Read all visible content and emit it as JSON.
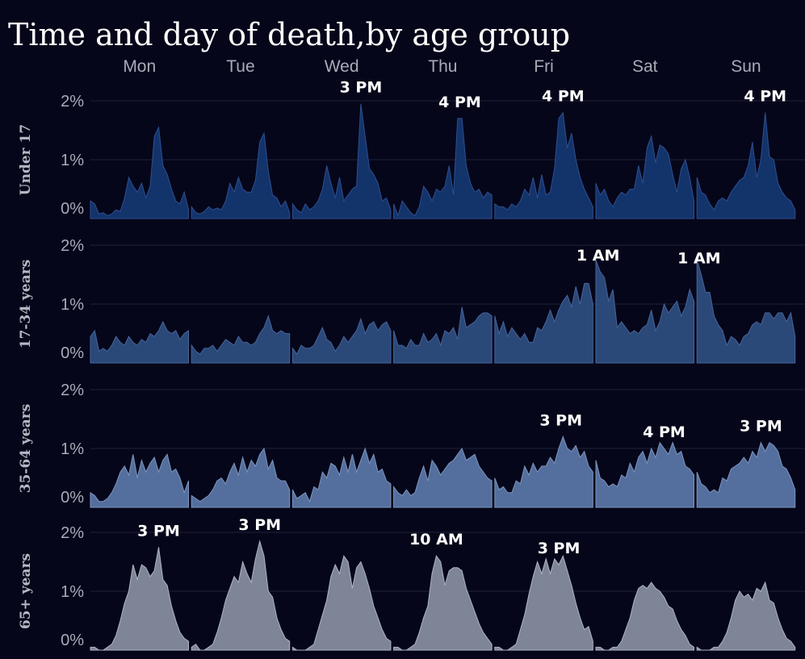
{
  "chart_data": {
    "type": "area",
    "title": "Time and day of death,by age group",
    "days": [
      "Mon",
      "Tue",
      "Wed",
      "Thu",
      "Fri",
      "Sat",
      "Sun"
    ],
    "y_ticks": [
      "2%",
      "1%",
      "0%"
    ],
    "ylim": [
      0,
      2
    ],
    "x_unit": "hour of day (0-23) within each day",
    "rows": [
      {
        "name": "Under 17",
        "color": "#13336b",
        "stroke": "#2d4f8e",
        "values": [
          [
            0.3,
            0.25,
            0.08,
            0.1,
            0.05,
            0.08,
            0.15,
            0.12,
            0.35,
            0.7,
            0.55,
            0.45,
            0.6,
            0.35,
            0.55,
            1.4,
            1.55,
            0.9,
            0.75,
            0.5,
            0.3,
            0.25,
            0.45,
            0.15
          ],
          [
            0.2,
            0.1,
            0.08,
            0.12,
            0.2,
            0.15,
            0.18,
            0.15,
            0.3,
            0.6,
            0.45,
            0.7,
            0.5,
            0.45,
            0.45,
            0.65,
            1.3,
            1.45,
            0.8,
            0.4,
            0.35,
            0.2,
            0.3,
            0.1
          ],
          [
            0.25,
            0.15,
            0.1,
            0.25,
            0.15,
            0.2,
            0.3,
            0.5,
            0.9,
            0.6,
            0.35,
            0.7,
            0.3,
            0.4,
            0.5,
            0.55,
            1.95,
            1.4,
            0.85,
            0.75,
            0.6,
            0.3,
            0.35,
            0.15
          ],
          [
            0.25,
            0.05,
            0.3,
            0.2,
            0.1,
            0.05,
            0.2,
            0.55,
            0.45,
            0.3,
            0.5,
            0.45,
            0.55,
            0.9,
            0.4,
            1.7,
            1.7,
            0.9,
            0.6,
            0.45,
            0.5,
            0.35,
            0.45,
            0.4
          ],
          [
            0.25,
            0.2,
            0.2,
            0.15,
            0.25,
            0.2,
            0.3,
            0.5,
            0.4,
            0.7,
            0.35,
            0.75,
            0.4,
            0.45,
            0.85,
            1.7,
            1.8,
            1.2,
            1.45,
            1.0,
            0.7,
            0.5,
            0.35,
            0.2
          ],
          [
            0.6,
            0.4,
            0.5,
            0.3,
            0.2,
            0.35,
            0.45,
            0.4,
            0.5,
            0.5,
            0.9,
            0.6,
            1.2,
            1.4,
            0.95,
            1.25,
            1.2,
            1.1,
            0.75,
            0.45,
            0.85,
            1.0,
            0.7,
            0.3
          ],
          [
            0.7,
            0.45,
            0.4,
            0.25,
            0.15,
            0.3,
            0.35,
            0.3,
            0.45,
            0.55,
            0.65,
            0.7,
            0.9,
            1.3,
            0.7,
            1.0,
            1.8,
            1.05,
            1.0,
            0.6,
            0.45,
            0.35,
            0.3,
            0.15
          ]
        ],
        "annotations": [
          {
            "day": 2,
            "hour": 16,
            "label": "3 PM"
          },
          {
            "day": 3,
            "hour": 15.5,
            "label": "4 PM"
          },
          {
            "day": 4,
            "hour": 16,
            "label": "4 PM"
          },
          {
            "day": 6,
            "hour": 16,
            "label": "4 PM"
          }
        ]
      },
      {
        "name": "17-34 years",
        "color": "#2a4878",
        "stroke": "#46659a",
        "values": [
          [
            0.45,
            0.55,
            0.2,
            0.25,
            0.2,
            0.3,
            0.45,
            0.35,
            0.3,
            0.45,
            0.35,
            0.3,
            0.4,
            0.35,
            0.5,
            0.45,
            0.55,
            0.7,
            0.55,
            0.5,
            0.55,
            0.4,
            0.5,
            0.55
          ],
          [
            0.3,
            0.2,
            0.15,
            0.25,
            0.25,
            0.3,
            0.2,
            0.3,
            0.4,
            0.35,
            0.3,
            0.45,
            0.35,
            0.35,
            0.3,
            0.35,
            0.5,
            0.6,
            0.8,
            0.55,
            0.5,
            0.55,
            0.5,
            0.5
          ],
          [
            0.25,
            0.15,
            0.3,
            0.25,
            0.25,
            0.3,
            0.45,
            0.6,
            0.4,
            0.35,
            0.2,
            0.3,
            0.45,
            0.35,
            0.45,
            0.55,
            0.75,
            0.5,
            0.65,
            0.7,
            0.55,
            0.65,
            0.7,
            0.55
          ],
          [
            0.55,
            0.3,
            0.3,
            0.25,
            0.4,
            0.3,
            0.3,
            0.5,
            0.35,
            0.4,
            0.5,
            0.3,
            0.55,
            0.5,
            0.6,
            0.4,
            0.95,
            0.6,
            0.65,
            0.7,
            0.8,
            0.85,
            0.85,
            0.8
          ],
          [
            0.8,
            0.5,
            0.7,
            0.45,
            0.6,
            0.5,
            0.4,
            0.5,
            0.35,
            0.35,
            0.6,
            0.55,
            0.7,
            0.9,
            0.7,
            0.9,
            1.05,
            1.15,
            0.95,
            1.3,
            1.0,
            1.35,
            1.35,
            1.0
          ],
          [
            1.75,
            1.55,
            1.45,
            1.05,
            1.25,
            0.6,
            0.7,
            0.6,
            0.5,
            0.55,
            0.5,
            0.6,
            0.65,
            0.9,
            0.55,
            0.7,
            1.0,
            0.85,
            0.95,
            1.05,
            0.8,
            0.95,
            1.25,
            1.05
          ],
          [
            1.75,
            1.5,
            1.2,
            1.2,
            0.8,
            0.65,
            0.55,
            0.3,
            0.45,
            0.4,
            0.3,
            0.45,
            0.5,
            0.65,
            0.7,
            0.65,
            0.85,
            0.85,
            0.75,
            0.85,
            0.85,
            0.7,
            0.85,
            0.45
          ]
        ],
        "annotations": [
          {
            "day": 5,
            "hour": 0.5,
            "label": "1 AM"
          },
          {
            "day": 6,
            "hour": 0.5,
            "label": "1 AM"
          }
        ]
      },
      {
        "name": "35-64 years",
        "color": "#546f9e",
        "stroke": "#7d95bd",
        "values": [
          [
            0.25,
            0.2,
            0.1,
            0.1,
            0.15,
            0.25,
            0.4,
            0.6,
            0.7,
            0.55,
            0.9,
            0.5,
            0.8,
            0.6,
            0.75,
            0.85,
            0.6,
            0.8,
            0.9,
            0.6,
            0.65,
            0.5,
            0.25,
            0.45
          ],
          [
            0.2,
            0.15,
            0.1,
            0.15,
            0.2,
            0.3,
            0.45,
            0.5,
            0.4,
            0.6,
            0.75,
            0.55,
            0.85,
            0.6,
            0.8,
            0.7,
            0.9,
            1.0,
            0.65,
            0.8,
            0.5,
            0.45,
            0.45,
            0.3
          ],
          [
            0.3,
            0.15,
            0.2,
            0.25,
            0.1,
            0.35,
            0.3,
            0.6,
            0.5,
            0.75,
            0.7,
            0.55,
            0.85,
            0.6,
            0.9,
            0.6,
            0.8,
            1.0,
            0.75,
            0.9,
            0.6,
            0.65,
            0.45,
            0.4
          ],
          [
            0.35,
            0.25,
            0.2,
            0.3,
            0.2,
            0.25,
            0.5,
            0.7,
            0.45,
            0.8,
            0.7,
            0.55,
            0.65,
            0.75,
            0.8,
            0.9,
            1.0,
            0.8,
            0.85,
            0.9,
            0.7,
            0.6,
            0.5,
            0.45
          ],
          [
            0.5,
            0.3,
            0.35,
            0.25,
            0.25,
            0.45,
            0.4,
            0.7,
            0.55,
            0.75,
            0.6,
            0.7,
            0.7,
            0.85,
            0.75,
            1.0,
            1.2,
            1.0,
            0.95,
            1.05,
            0.85,
            0.95,
            0.7,
            0.6
          ],
          [
            0.8,
            0.5,
            0.45,
            0.35,
            0.4,
            0.35,
            0.55,
            0.5,
            0.75,
            0.6,
            0.85,
            0.95,
            0.75,
            1.0,
            0.85,
            1.1,
            1.0,
            0.9,
            1.1,
            0.9,
            0.95,
            0.7,
            0.65,
            0.55
          ],
          [
            0.6,
            0.4,
            0.35,
            0.25,
            0.3,
            0.25,
            0.5,
            0.45,
            0.65,
            0.7,
            0.75,
            0.85,
            0.75,
            0.95,
            0.85,
            1.1,
            0.95,
            1.1,
            1.05,
            0.95,
            0.7,
            0.65,
            0.5,
            0.3
          ]
        ],
        "annotations": [
          {
            "day": 4,
            "hour": 15.5,
            "label": "3 PM"
          },
          {
            "day": 5,
            "hour": 16,
            "label": "4 PM"
          },
          {
            "day": 6,
            "hour": 15,
            "label": "3 PM"
          }
        ]
      },
      {
        "name": "65+ years",
        "color": "#7e8597",
        "stroke": "#aeb4c2",
        "values": [
          [
            0.05,
            0.05,
            0.0,
            0.0,
            0.05,
            0.1,
            0.25,
            0.5,
            0.8,
            1.0,
            1.45,
            1.2,
            1.45,
            1.4,
            1.25,
            1.35,
            1.75,
            1.2,
            1.1,
            0.75,
            0.5,
            0.3,
            0.2,
            0.15
          ],
          [
            0.05,
            0.1,
            0.0,
            0.0,
            0.05,
            0.1,
            0.3,
            0.55,
            0.85,
            1.05,
            1.25,
            1.15,
            1.5,
            1.3,
            1.15,
            1.55,
            1.85,
            1.6,
            1.0,
            0.9,
            0.55,
            0.35,
            0.2,
            0.15
          ],
          [
            0.05,
            0.0,
            0.0,
            0.0,
            0.05,
            0.1,
            0.35,
            0.6,
            0.85,
            1.25,
            1.45,
            1.3,
            1.6,
            1.5,
            1.05,
            1.4,
            1.5,
            1.3,
            1.05,
            0.75,
            0.55,
            0.35,
            0.2,
            0.15
          ],
          [
            0.05,
            0.05,
            0.0,
            0.0,
            0.05,
            0.1,
            0.3,
            0.55,
            0.75,
            1.3,
            1.6,
            1.5,
            1.1,
            1.35,
            1.4,
            1.4,
            1.35,
            1.05,
            0.85,
            0.65,
            0.45,
            0.3,
            0.2,
            0.1
          ],
          [
            0.05,
            0.05,
            0.0,
            0.0,
            0.05,
            0.1,
            0.35,
            0.6,
            0.95,
            1.25,
            1.5,
            1.3,
            1.55,
            1.3,
            1.55,
            1.45,
            1.6,
            1.35,
            1.1,
            0.8,
            0.55,
            0.35,
            0.4,
            0.15
          ],
          [
            0.05,
            0.05,
            0.0,
            0.0,
            0.05,
            0.05,
            0.15,
            0.35,
            0.55,
            0.85,
            1.05,
            1.1,
            1.05,
            1.15,
            1.05,
            1.0,
            0.9,
            0.75,
            0.7,
            0.5,
            0.35,
            0.25,
            0.1,
            0.05
          ],
          [
            0.05,
            0.0,
            0.0,
            0.0,
            0.05,
            0.05,
            0.15,
            0.3,
            0.55,
            0.85,
            1.0,
            0.9,
            0.95,
            0.85,
            1.05,
            1.0,
            1.15,
            0.85,
            0.8,
            0.55,
            0.35,
            0.2,
            0.15,
            0.05
          ]
        ],
        "annotations": [
          {
            "day": 0,
            "hour": 16,
            "label": "3 PM"
          },
          {
            "day": 1,
            "hour": 16,
            "label": "3 PM"
          },
          {
            "day": 3,
            "hour": 10,
            "label": "10 AM"
          },
          {
            "day": 4,
            "hour": 15,
            "label": "3 PM"
          }
        ]
      }
    ]
  }
}
